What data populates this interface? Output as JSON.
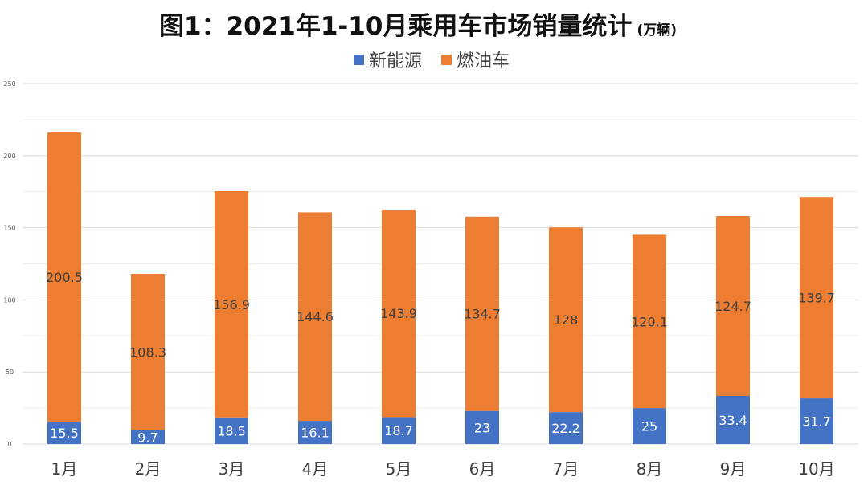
{
  "chart_data": {
    "type": "bar",
    "stacked": true,
    "title": "图1：2021年1-10月乘用车市场销量统计",
    "title_unit": "(万辆)",
    "categories": [
      "1月",
      "2月",
      "3月",
      "4月",
      "5月",
      "6月",
      "7月",
      "8月",
      "9月",
      "10月"
    ],
    "series": [
      {
        "name": "新能源",
        "color": "#4472C4",
        "values": [
          15.5,
          9.7,
          18.5,
          16.1,
          18.7,
          23,
          22.2,
          25,
          33.4,
          31.7
        ]
      },
      {
        "name": "燃油车",
        "color": "#ED7D31",
        "values": [
          200.5,
          108.3,
          156.9,
          144.6,
          143.9,
          134.7,
          128,
          120.1,
          124.7,
          139.7
        ]
      }
    ],
    "ylim": [
      0,
      250
    ],
    "yticks": [
      0,
      50,
      100,
      150,
      200,
      250
    ],
    "grid": true,
    "legend": "top-center",
    "xlabel": "",
    "ylabel": ""
  }
}
